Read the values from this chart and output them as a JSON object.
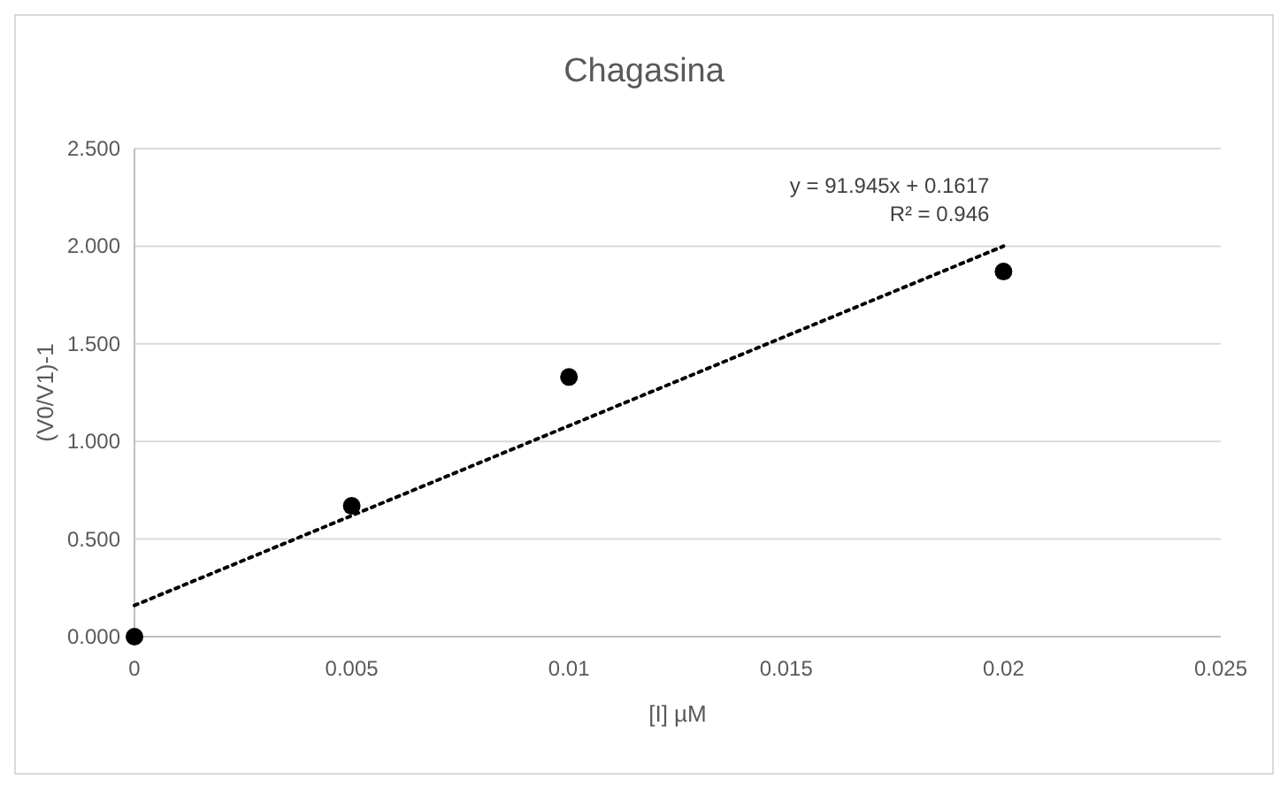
{
  "chart_data": {
    "type": "scatter",
    "title": "Chagasina",
    "xlabel": "[I] µM",
    "ylabel": "(V0/V1)-1",
    "x": [
      0,
      0.005,
      0.01,
      0.02
    ],
    "series": [
      {
        "color": "#000000",
        "marker": "circle",
        "values": [
          0,
          0.67,
          1.33,
          1.87
        ]
      },
      {
        "type": "line",
        "color": "#000000",
        "line_style": "dotted",
        "marker": "none",
        "x": [
          0,
          0.02
        ],
        "values": [
          0.16,
          2.0
        ]
      }
    ],
    "xlim": [
      0,
      0.025
    ],
    "xticks": [
      0,
      0.005,
      0.01,
      0.015,
      0.02,
      0.025
    ],
    "ylim": [
      0,
      2.5
    ],
    "yticks": [
      {
        "value": 0,
        "label": "0.000"
      },
      {
        "value": 0.5,
        "label": "0.500"
      },
      {
        "value": 1,
        "label": "1.000"
      },
      {
        "value": 1.5,
        "label": "1.500"
      },
      {
        "value": 2,
        "label": "2.000"
      },
      {
        "value": 2.5,
        "label": "2.500"
      }
    ],
    "grid": "y",
    "annotations": [
      "y = 91.945x + 0.1617",
      "R² = 0.946"
    ]
  }
}
